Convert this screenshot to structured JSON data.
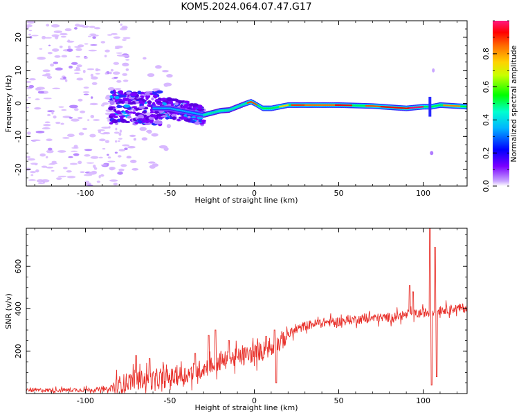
{
  "title": "KOM5.2024.064.07.47.G17",
  "chart_data": [
    {
      "type": "heatmap",
      "xlabel": "Height of straight line (km)",
      "ylabel": "Frequency (Hz)",
      "xlim": [
        -135,
        126
      ],
      "ylim": [
        -25,
        25
      ],
      "xticks": [
        -100,
        -50,
        0,
        50,
        100
      ],
      "yticks": [
        -20,
        -10,
        0,
        10,
        20
      ],
      "colorbar": {
        "label": "Normalized spectral amplitude",
        "range": [
          0,
          1
        ],
        "ticks": [
          "0.0",
          "0.2",
          "0.4",
          "0.6",
          "0.8"
        ],
        "colormap": "hsv (purple-blue-cyan-green-yellow-orange-red-pink)"
      },
      "ridge": [
        {
          "x": -135,
          "f": -1.0
        },
        {
          "x": -90,
          "f": -1.0
        },
        {
          "x": -75,
          "f": -1.5
        },
        {
          "x": -50,
          "f": -1.5
        },
        {
          "x": -40,
          "f": -2.5
        },
        {
          "x": -30,
          "f": -3.5
        },
        {
          "x": -20,
          "f": -2.2
        },
        {
          "x": -15,
          "f": -2.0
        },
        {
          "x": -10,
          "f": -1.0
        },
        {
          "x": -5,
          "f": 0.0
        },
        {
          "x": -2,
          "f": 0.5
        },
        {
          "x": 0,
          "f": 0.0
        },
        {
          "x": 5,
          "f": -1.5
        },
        {
          "x": 10,
          "f": -1.5
        },
        {
          "x": 20,
          "f": -0.5
        },
        {
          "x": 30,
          "f": -0.5
        },
        {
          "x": 50,
          "f": -0.5
        },
        {
          "x": 70,
          "f": -0.8
        },
        {
          "x": 90,
          "f": -1.5
        },
        {
          "x": 100,
          "f": -1.0
        },
        {
          "x": 105,
          "f": -1.0
        },
        {
          "x": 110,
          "f": -0.5
        },
        {
          "x": 126,
          "f": -1.0
        }
      ]
    },
    {
      "type": "line",
      "xlabel": "Height of straight line (km)",
      "ylabel": "SNR (v/v)",
      "xlim": [
        -135,
        126
      ],
      "ylim": [
        0,
        780
      ],
      "xticks": [
        -100,
        -50,
        0,
        50,
        100
      ],
      "yticks": [
        200,
        400,
        600
      ],
      "series": [
        {
          "color": "#e8302a",
          "trend": [
            [
              -135,
              15
            ],
            [
              -100,
              18
            ],
            [
              -85,
              20
            ],
            [
              -80,
              40
            ],
            [
              -70,
              70
            ],
            [
              -60,
              60
            ],
            [
              -50,
              75
            ],
            [
              -40,
              90
            ],
            [
              -30,
              120
            ],
            [
              -20,
              150
            ],
            [
              -10,
              170
            ],
            [
              0,
              190
            ],
            [
              5,
              205
            ],
            [
              10,
              215
            ],
            [
              15,
              240
            ],
            [
              20,
              280
            ],
            [
              30,
              320
            ],
            [
              40,
              335
            ],
            [
              50,
              340
            ],
            [
              60,
              350
            ],
            [
              70,
              355
            ],
            [
              80,
              360
            ],
            [
              90,
              370
            ],
            [
              95,
              375
            ],
            [
              100,
              380
            ],
            [
              110,
              395
            ],
            [
              126,
              405
            ]
          ],
          "spikes": [
            [
              -70,
              180
            ],
            [
              -62,
              165
            ],
            [
              -35,
              190
            ],
            [
              -27,
              275
            ],
            [
              -23,
              300
            ],
            [
              -15,
              250
            ],
            [
              -5,
              170
            ],
            [
              7,
              270
            ],
            [
              12,
              300
            ],
            [
              13,
              50
            ],
            [
              92,
              510
            ],
            [
              94,
              480
            ],
            [
              104,
              780
            ],
            [
              105,
              40
            ],
            [
              107,
              690
            ],
            [
              108,
              80
            ]
          ]
        }
      ]
    }
  ]
}
